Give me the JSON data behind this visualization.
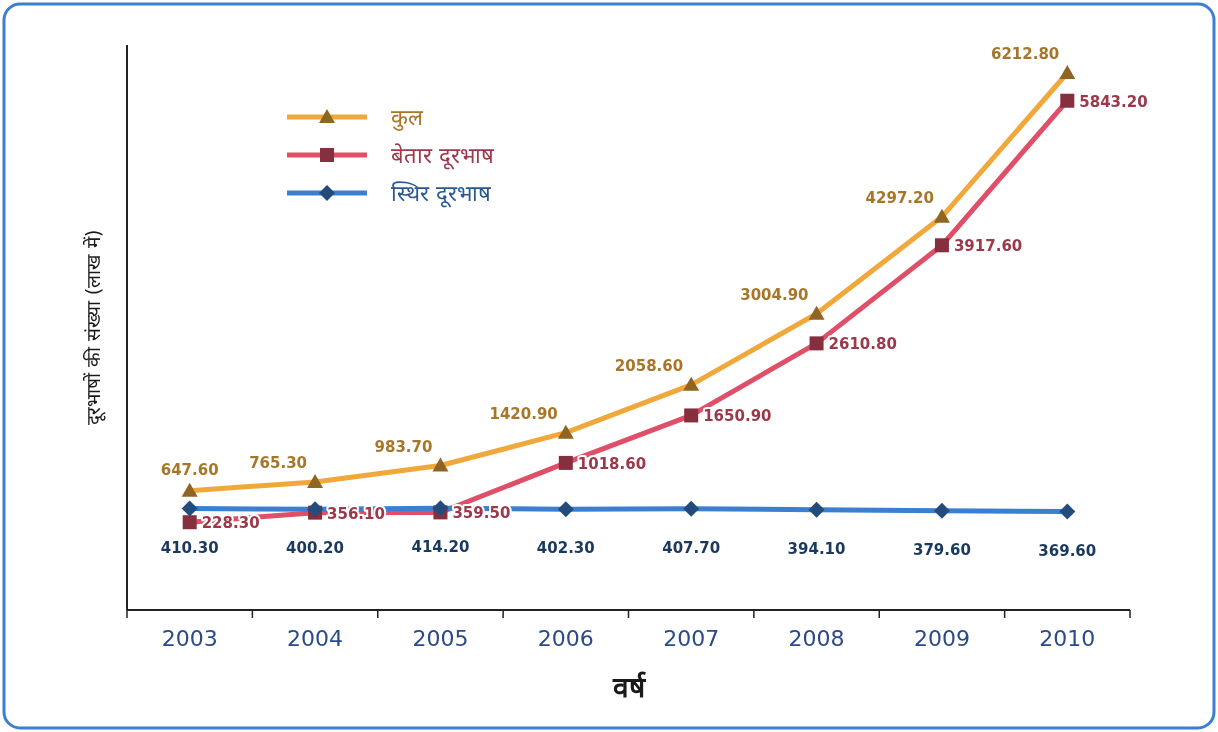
{
  "chart_data": {
    "type": "line",
    "xlabel": "वर्ष",
    "ylabel": "दूरभाषों की संख्या (लाख में)",
    "categories": [
      "2003",
      "2004",
      "2005",
      "2006",
      "2007",
      "2008",
      "2009",
      "2010"
    ],
    "series": [
      {
        "name": "कुल",
        "color": "#f0a83a",
        "marker": "triangle",
        "values": [
          647.6,
          765.3,
          983.7,
          1420.9,
          2058.6,
          3004.9,
          4297.2,
          6212.8
        ],
        "value_labels": [
          "647.60",
          "765.30",
          "983.70",
          "1420.90",
          "2058.60",
          "3004.90",
          "4297.20",
          "6212.80"
        ]
      },
      {
        "name": "बेतार दूरभाष",
        "color": "#e04f68",
        "marker": "square",
        "values": [
          228.3,
          356.1,
          359.5,
          1018.6,
          1650.9,
          2610.8,
          3917.6,
          5843.2
        ],
        "value_labels": [
          "228.30",
          "356.10",
          "359.50",
          "1018.60",
          "1650.90",
          "2610.80",
          "3917.60",
          "5843.20"
        ]
      },
      {
        "name": "स्थिर दूरभाष",
        "color": "#3a7fd0",
        "marker": "diamond",
        "values": [
          410.3,
          400.2,
          414.2,
          402.3,
          407.7,
          394.1,
          379.6,
          369.6
        ],
        "value_labels": [
          "410.30",
          "400.20",
          "414.20",
          "402.30",
          "407.70",
          "394.10",
          "379.60",
          "369.60"
        ]
      }
    ],
    "legend": "top left",
    "grid": false
  }
}
